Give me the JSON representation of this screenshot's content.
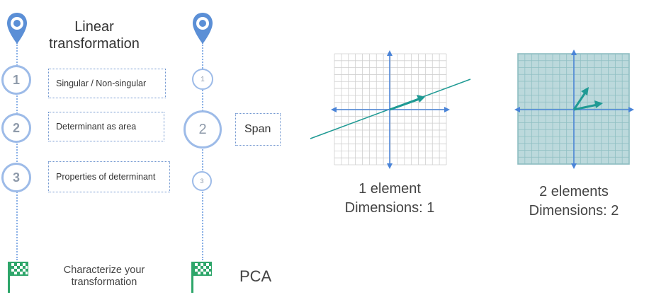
{
  "left_track": {
    "title_line1": "Linear",
    "title_line2": "transformation",
    "steps": [
      {
        "number": "1",
        "label": "Singular / Non-singular"
      },
      {
        "number": "2",
        "label": "Determinant as area"
      },
      {
        "number": "3",
        "label": "Properties of determinant"
      }
    ],
    "goal_line1": "Characterize your",
    "goal_line2": "transformation"
  },
  "right_track": {
    "steps": [
      {
        "number": "1"
      },
      {
        "number": "2",
        "label": "Span"
      },
      {
        "number": "3"
      }
    ],
    "goal": "PCA"
  },
  "figures": [
    {
      "line1": "1 element",
      "line2": "Dimensions: 1"
    },
    {
      "line1": "2 elements",
      "line2": "Dimensions: 2"
    }
  ],
  "colors": {
    "pin": "#5b8fd6",
    "timeline": "#8ab0e6",
    "axis": "#4a84d8",
    "vector": "#1f9a94",
    "flag": "#2ea66a",
    "span_fill": "#bcd9dc"
  }
}
